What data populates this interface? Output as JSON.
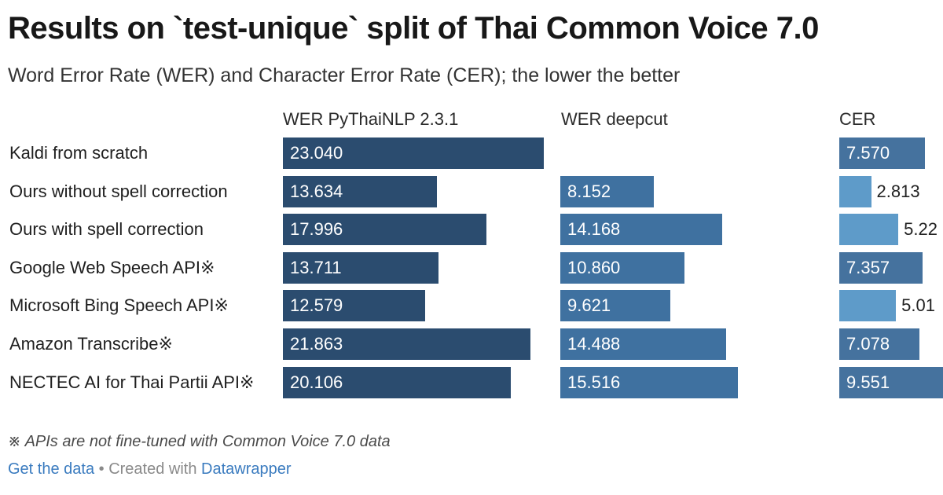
{
  "title": "Results on `test-unique` split of Thai Common Voice 7.0",
  "subtitle": "Word Error Rate (WER) and Character Error Rate (CER); the lower the better",
  "note": "※ APIs are not fine-tuned with Common Voice 7.0 data",
  "footer": {
    "get_data": "Get the data",
    "separator": " • Created with ",
    "datawrapper": "Datawrapper"
  },
  "chart_data": {
    "type": "bar",
    "orientation": "horizontal",
    "categories": [
      "Kaldi from scratch",
      "Ours without spell correction",
      "Ours with spell correction",
      "Google Web Speech API※",
      "Microsoft Bing Speech API※",
      "Amazon Transcribe※",
      "NECTEC AI for Thai Partii API※"
    ],
    "series": [
      {
        "name": "WER PyThaiNLP 2.3.1",
        "color": "#2b4c6f",
        "values": [
          23.04,
          13.634,
          17.996,
          13.711,
          12.579,
          21.863,
          20.106
        ],
        "labels": [
          "23.040",
          "13.634",
          "17.996",
          "13.711",
          "12.579",
          "21.863",
          "20.106"
        ]
      },
      {
        "name": "WER deepcut",
        "color": "#3f71a0",
        "values": [
          null,
          8.152,
          14.168,
          10.86,
          9.621,
          14.488,
          15.516
        ],
        "labels": [
          "",
          "8.152",
          "14.168",
          "10.860",
          "9.621",
          "14.488",
          "15.516"
        ]
      },
      {
        "name": "CER",
        "color_strong": "#45729e",
        "color_light": "#5e9bc9",
        "values": [
          7.57,
          2.813,
          5.22,
          7.357,
          5.01,
          7.078,
          9.551
        ],
        "labels": [
          "7.570",
          "2.813",
          "5.22",
          "7.357",
          "5.01",
          "7.078",
          "9.551"
        ]
      }
    ]
  }
}
